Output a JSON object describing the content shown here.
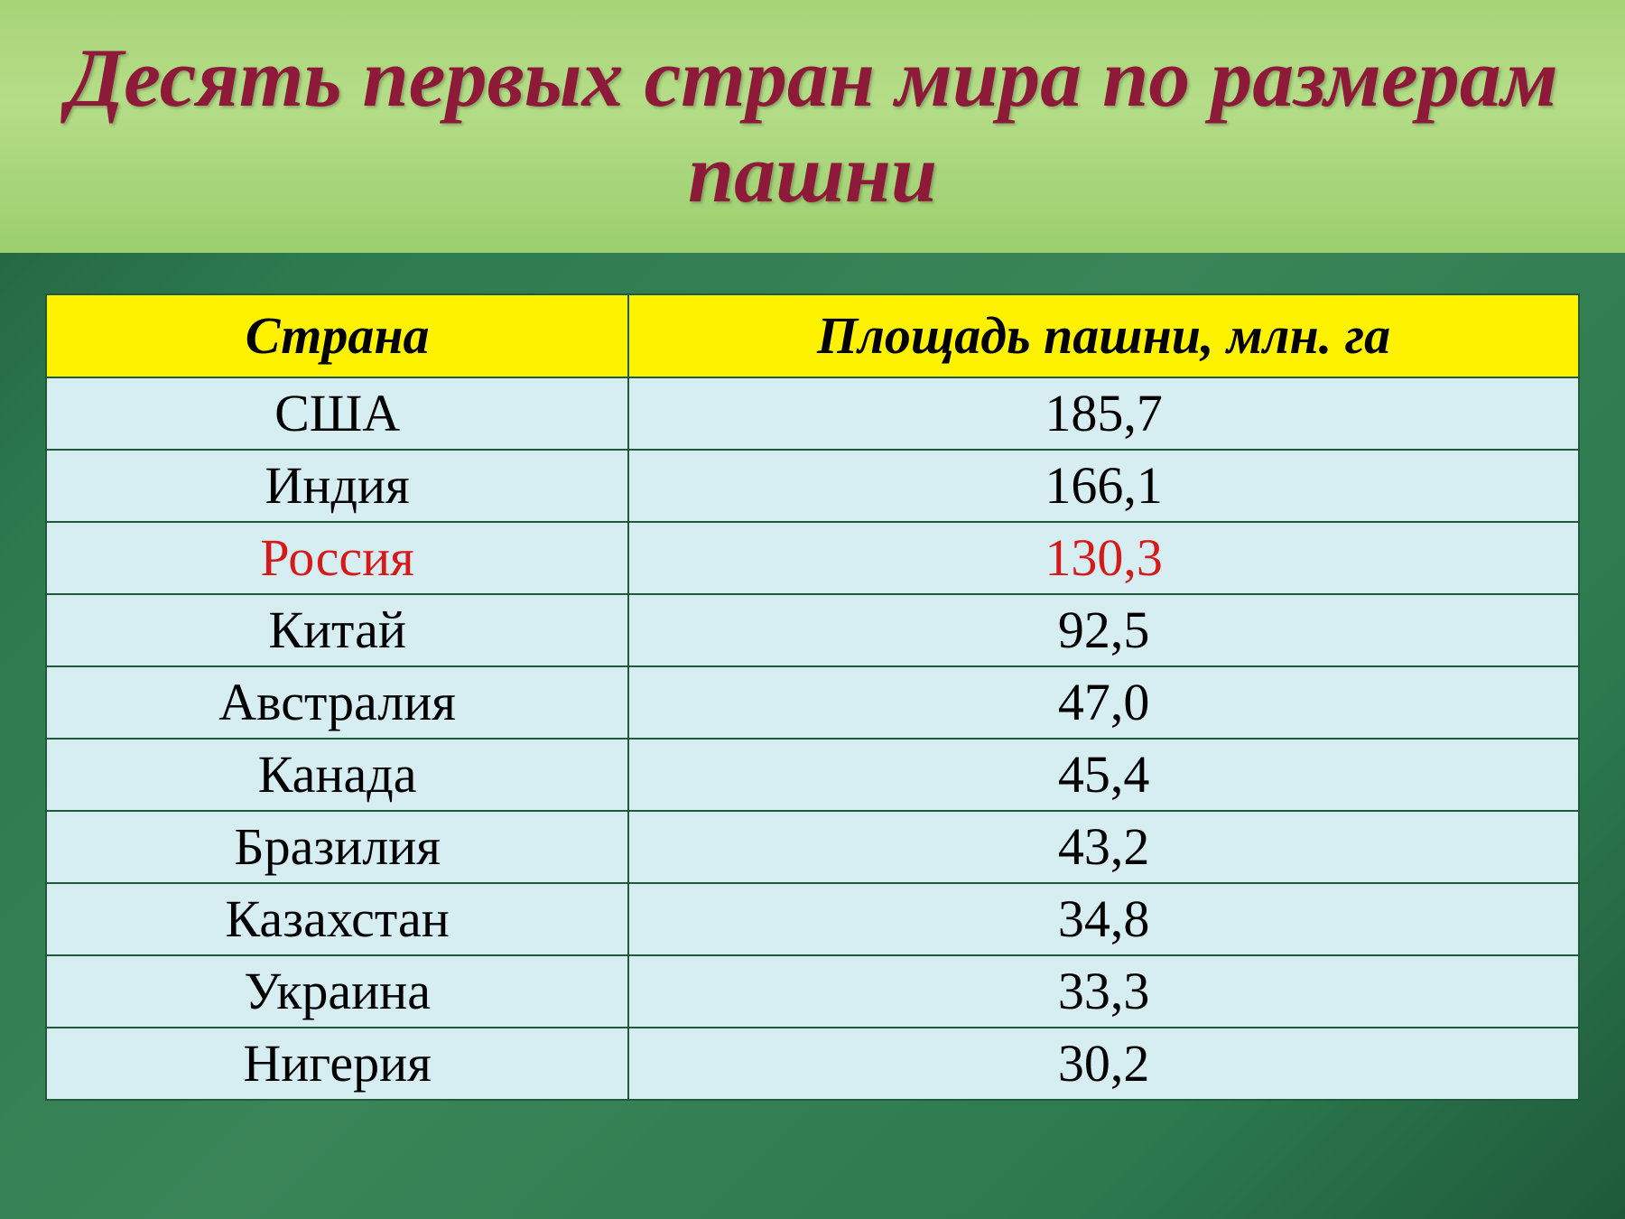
{
  "title": "Десять первых стран мира по размерам пашни",
  "table": {
    "columns": [
      "Страна",
      "Площадь пашни, млн. га"
    ],
    "rows": [
      {
        "country": "США",
        "value": "185,7",
        "highlight": false
      },
      {
        "country": "Индия",
        "value": "166,1",
        "highlight": false
      },
      {
        "country": "Россия",
        "value": "130,3",
        "highlight": true
      },
      {
        "country": "Китай",
        "value": "92,5",
        "highlight": false
      },
      {
        "country": "Австралия",
        "value": "47,0",
        "highlight": false
      },
      {
        "country": "Канада",
        "value": "45,4",
        "highlight": false
      },
      {
        "country": "Бразилия",
        "value": "43,2",
        "highlight": false
      },
      {
        "country": "Казахстан",
        "value": "34,8",
        "highlight": false
      },
      {
        "country": "Украина",
        "value": "33,3",
        "highlight": false
      },
      {
        "country": "Нигерия",
        "value": "30,2",
        "highlight": false
      }
    ],
    "header_bg": "#fff200",
    "cell_bg": "#d6edf2",
    "border_color": "#1f5a3a",
    "highlight_color": "#d61a1a",
    "title_color": "#8e1a3a",
    "title_fontsize": 92,
    "cell_fontsize": 58,
    "col_widths_pct": [
      38,
      62
    ]
  },
  "background_gradient": [
    "#1e5a3a",
    "#2d7a4f",
    "#3a8558"
  ],
  "title_band_gradient": [
    "#a8d478",
    "#b5dd88",
    "#9bcf6e"
  ]
}
